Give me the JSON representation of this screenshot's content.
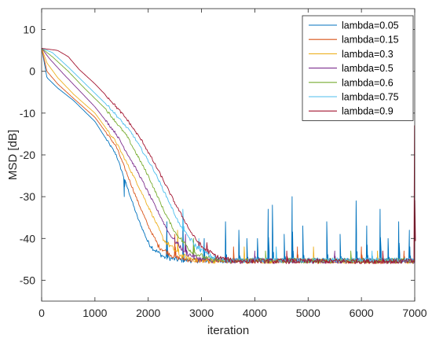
{
  "chart_data": {
    "type": "line",
    "title": "",
    "xlabel": "iteration",
    "ylabel": "MSD [dB]",
    "xlim": [
      0,
      7000
    ],
    "ylim": [
      -55,
      15
    ],
    "xticks": [
      0,
      1000,
      2000,
      3000,
      4000,
      5000,
      6000,
      7000
    ],
    "yticks": [
      -50,
      -40,
      -30,
      -20,
      -10,
      0,
      10
    ],
    "grid": false,
    "legend_position": "top-right",
    "series": [
      {
        "name": "lambda=0.05",
        "color": "#0072BD",
        "x": [
          0,
          100,
          300,
          600,
          1000,
          1400,
          1800,
          2000,
          2100,
          2300,
          2600,
          3000,
          7000
        ],
        "y": [
          5.5,
          -1.5,
          -4,
          -7,
          -12,
          -20,
          -35,
          -41,
          -42.5,
          -44.5,
          -45.2,
          -45.3,
          -45.3
        ],
        "spikes": [
          {
            "x": 1550,
            "y": -30
          },
          {
            "x": 2350,
            "y": -36
          },
          {
            "x": 2650,
            "y": -35
          },
          {
            "x": 3050,
            "y": -40
          },
          {
            "x": 3450,
            "y": -36
          },
          {
            "x": 3700,
            "y": -38
          },
          {
            "x": 3850,
            "y": -40
          },
          {
            "x": 4050,
            "y": -40
          },
          {
            "x": 4250,
            "y": -33
          },
          {
            "x": 4330,
            "y": -32
          },
          {
            "x": 4550,
            "y": -39
          },
          {
            "x": 4700,
            "y": -30
          },
          {
            "x": 4900,
            "y": -37
          },
          {
            "x": 5350,
            "y": -36
          },
          {
            "x": 5600,
            "y": -39
          },
          {
            "x": 5900,
            "y": -31
          },
          {
            "x": 6100,
            "y": -37
          },
          {
            "x": 6350,
            "y": -33
          },
          {
            "x": 6500,
            "y": -40
          },
          {
            "x": 6700,
            "y": -36
          },
          {
            "x": 6900,
            "y": -38
          }
        ]
      },
      {
        "name": "lambda=0.15",
        "color": "#D95319",
        "x": [
          0,
          100,
          300,
          600,
          1000,
          1400,
          1800,
          2000,
          2200,
          2500,
          2800,
          3100,
          7000
        ],
        "y": [
          5.5,
          0,
          -3,
          -6.5,
          -11,
          -18,
          -31,
          -37,
          -42,
          -44.5,
          -45.2,
          -45.4,
          -45.4
        ],
        "spikes": [
          {
            "x": 2500,
            "y": -39
          },
          {
            "x": 3600,
            "y": -42
          },
          {
            "x": 4800,
            "y": -42
          },
          {
            "x": 6000,
            "y": -42
          },
          {
            "x": 6800,
            "y": -43
          }
        ]
      },
      {
        "name": "lambda=0.3",
        "color": "#EDB120",
        "x": [
          0,
          100,
          300,
          600,
          1000,
          1400,
          1800,
          2100,
          2300,
          2600,
          2900,
          3200,
          7000
        ],
        "y": [
          5.5,
          2,
          -1.5,
          -5.5,
          -10,
          -17,
          -27,
          -35,
          -40.5,
          -44,
          -45.2,
          -45.4,
          -45.4
        ],
        "spikes": [
          {
            "x": 2550,
            "y": -38
          },
          {
            "x": 3800,
            "y": -42
          },
          {
            "x": 5100,
            "y": -42
          },
          {
            "x": 6300,
            "y": -43
          }
        ]
      },
      {
        "name": "lambda=0.5",
        "color": "#7E2F8E",
        "x": [
          0,
          150,
          400,
          700,
          1000,
          1400,
          1800,
          2200,
          2400,
          2700,
          3000,
          3300,
          7000
        ],
        "y": [
          5.5,
          3,
          -0.5,
          -4.5,
          -8.5,
          -15,
          -24,
          -34,
          -39,
          -43.5,
          -45,
          -45.4,
          -45.4
        ],
        "spikes": [
          {
            "x": 2700,
            "y": -39
          },
          {
            "x": 4000,
            "y": -43
          },
          {
            "x": 5500,
            "y": -43
          }
        ]
      },
      {
        "name": "lambda=0.6",
        "color": "#77AC30",
        "x": [
          0,
          200,
          500,
          800,
          1200,
          1600,
          2000,
          2300,
          2500,
          2800,
          3100,
          3400,
          7000
        ],
        "y": [
          5.5,
          3.5,
          0,
          -4,
          -9,
          -15.5,
          -25,
          -33.5,
          -38.5,
          -43,
          -44.8,
          -45.3,
          -45.3
        ],
        "spikes": [
          {
            "x": 2850,
            "y": -40
          },
          {
            "x": 4200,
            "y": -43
          },
          {
            "x": 5800,
            "y": -43
          }
        ]
      },
      {
        "name": "lambda=0.75",
        "color": "#4DBEEE",
        "x": [
          0,
          200,
          500,
          900,
          1300,
          1700,
          2100,
          2400,
          2600,
          2900,
          3200,
          3500,
          7000
        ],
        "y": [
          5.5,
          4.5,
          1,
          -4,
          -9,
          -15,
          -23.5,
          -31.5,
          -37,
          -42,
          -44.5,
          -45.2,
          -45.2
        ],
        "spikes": [
          {
            "x": 2650,
            "y": -33
          },
          {
            "x": 2950,
            "y": -40
          },
          {
            "x": 4400,
            "y": -42
          },
          {
            "x": 6200,
            "y": -43
          }
        ]
      },
      {
        "name": "lambda=0.9",
        "color": "#A2142F",
        "x": [
          0,
          300,
          500,
          700,
          1000,
          1300,
          1600,
          1900,
          2200,
          2500,
          2800,
          3000,
          3300,
          3600,
          7000
        ],
        "y": [
          5.5,
          5,
          3.5,
          0.5,
          -3,
          -7,
          -11.5,
          -17,
          -24,
          -31.5,
          -38.5,
          -42,
          -44.5,
          -45.4,
          -45.5
        ],
        "spikes": [
          {
            "x": 3100,
            "y": -41
          },
          {
            "x": 4600,
            "y": -43
          },
          {
            "x": 6400,
            "y": -43
          },
          {
            "x": 6995,
            "y": -13
          }
        ]
      }
    ]
  }
}
